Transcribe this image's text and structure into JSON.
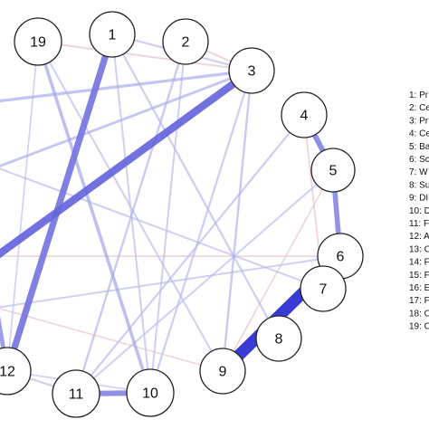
{
  "network": {
    "nodes": [
      {
        "id": "1",
        "label": "1"
      },
      {
        "id": "2",
        "label": "2"
      },
      {
        "id": "3",
        "label": "3"
      },
      {
        "id": "4",
        "label": "4"
      },
      {
        "id": "5",
        "label": "5"
      },
      {
        "id": "6",
        "label": "6"
      },
      {
        "id": "7",
        "label": "7"
      },
      {
        "id": "8",
        "label": "8"
      },
      {
        "id": "9",
        "label": "9"
      },
      {
        "id": "10",
        "label": "10"
      },
      {
        "id": "11",
        "label": "11"
      },
      {
        "id": "12",
        "label": "12"
      },
      {
        "id": "19",
        "label": "19"
      }
    ],
    "edges": [
      {
        "from": "6",
        "to": "9",
        "weight": 1.0,
        "sign": "positive"
      },
      {
        "from": "3",
        "to": "left-exit-mid",
        "weight": 0.62,
        "sign": "positive"
      },
      {
        "from": "1",
        "to": "12",
        "weight": 0.52,
        "sign": "positive"
      },
      {
        "from": "11",
        "to": "10",
        "weight": 0.42,
        "sign": "positive"
      },
      {
        "from": "4",
        "to": "5",
        "weight": 0.42,
        "sign": "positive"
      },
      {
        "from": "5",
        "to": "6",
        "weight": 0.38,
        "sign": "positive"
      },
      {
        "from": "12",
        "to": "left-exit-low",
        "weight": 0.32,
        "sign": "positive"
      },
      {
        "from": "19",
        "to": "10",
        "weight": 0.22,
        "sign": "positive"
      },
      {
        "from": "3",
        "to": "left-exit-top",
        "weight": 0.18,
        "sign": "positive"
      },
      {
        "from": "3",
        "to": "left-exit-upper",
        "weight": 0.16,
        "sign": "positive"
      },
      {
        "from": "2",
        "to": "11",
        "weight": 0.12,
        "sign": "positive"
      },
      {
        "from": "3",
        "to": "9",
        "weight": 0.12,
        "sign": "positive"
      },
      {
        "from": "4",
        "to": "11",
        "weight": 0.1,
        "sign": "positive"
      },
      {
        "from": "1",
        "to": "8",
        "weight": 0.1,
        "sign": "positive"
      },
      {
        "from": "2",
        "to": "10",
        "weight": 0.08,
        "sign": "positive"
      },
      {
        "from": "19",
        "to": "9",
        "weight": 0.08,
        "sign": "positive"
      },
      {
        "from": "5",
        "to": "11",
        "weight": 0.08,
        "sign": "positive"
      },
      {
        "from": "left-exit-upper",
        "to": "7",
        "weight": 0.08,
        "sign": "positive"
      },
      {
        "from": "left-exit-low",
        "to": "6",
        "weight": 0.08,
        "sign": "positive"
      },
      {
        "from": "3",
        "to": "10",
        "weight": 0.1,
        "sign": "positive"
      },
      {
        "from": "1",
        "to": "3",
        "weight": 0.1,
        "sign": "positive"
      },
      {
        "from": "1",
        "to": "10",
        "weight": 0.08,
        "sign": "positive"
      },
      {
        "from": "19",
        "to": "12",
        "weight": 0.06,
        "sign": "positive"
      },
      {
        "from": "12",
        "to": "11",
        "weight": 0.08,
        "sign": "positive"
      },
      {
        "from": "12",
        "to": "10",
        "weight": 0.06,
        "sign": "positive"
      },
      {
        "from": "19",
        "to": "3",
        "weight": 0.08,
        "sign": "negative"
      },
      {
        "from": "2",
        "to": "3",
        "weight": 0.08,
        "sign": "negative"
      },
      {
        "from": "4",
        "to": "7",
        "weight": 0.07,
        "sign": "negative"
      },
      {
        "from": "5",
        "to": "9",
        "weight": 0.06,
        "sign": "negative"
      },
      {
        "from": "left-exit-mid",
        "to": "6",
        "weight": 0.06,
        "sign": "negative"
      },
      {
        "from": "9",
        "to": "left-exit-low",
        "weight": 0.05,
        "sign": "negative"
      }
    ]
  },
  "legend": {
    "items": [
      "1: Pr",
      "2: Ce",
      "3: Pr",
      "4: Ce",
      "5: Ba",
      "6: Sc",
      "7: W",
      "8: Su",
      "9: DI",
      "10: D",
      "11: F",
      "12: A",
      "13: C",
      "14: F",
      "15: F",
      "16: E",
      "17: F",
      "18: C",
      "19: C"
    ]
  },
  "colors": {
    "positive": "#2a2ad2",
    "negative": "#d04848",
    "node_fill": "#ffffff",
    "node_stroke": "#222222"
  }
}
